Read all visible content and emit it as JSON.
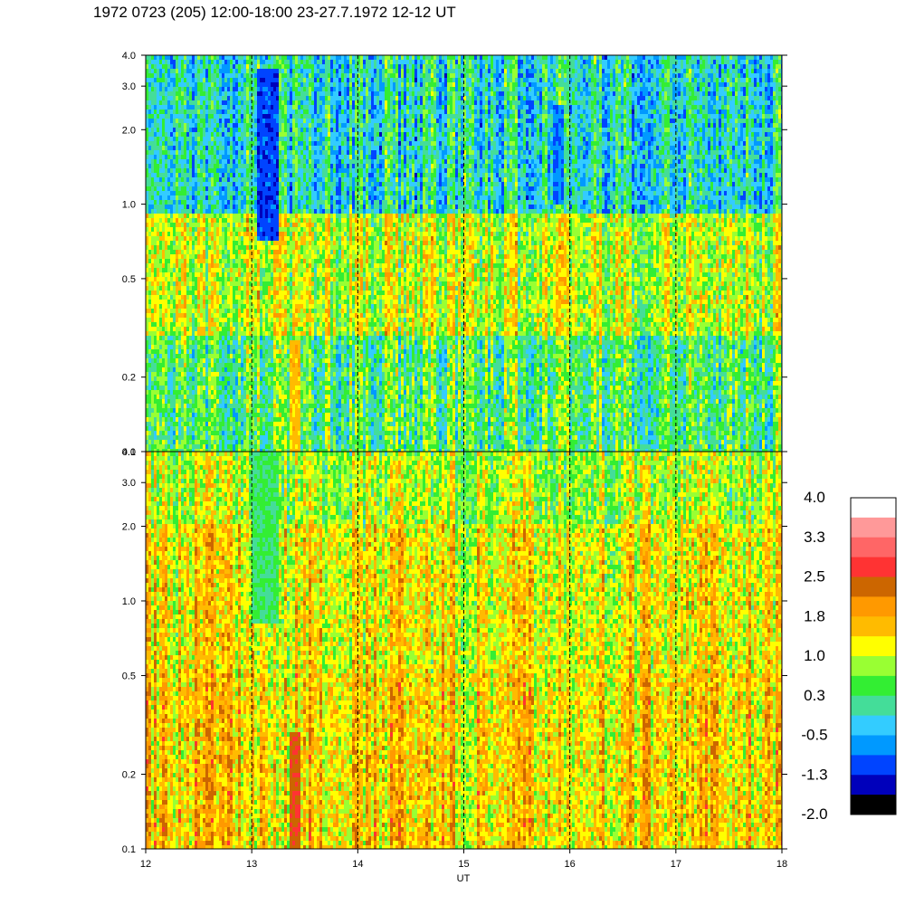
{
  "title": "1972 0723 (205) 12:00-18:00 23-27.7.1972  12-12 UT",
  "chart_data": [
    {
      "type": "heatmap",
      "panel": "top",
      "x": [
        12,
        13,
        14,
        15,
        16,
        17,
        18
      ],
      "xlim": [
        12,
        18
      ],
      "y_ticks": [
        "0.1",
        "0.2",
        "0.5",
        "1.0",
        "2.0",
        "3.0",
        "4.0"
      ],
      "y_tick_values": [
        0.1,
        0.2,
        0.5,
        1.0,
        2.0,
        3.0,
        4.0
      ],
      "ylim": [
        0.1,
        4.0
      ],
      "yscale": "log",
      "vertical_dashed_lines_at": [
        13,
        14,
        15,
        16,
        17
      ],
      "dominant_levels_by_frequency": [
        {
          "freq_range": [
            0.1,
            0.3
          ],
          "level": 0.3
        },
        {
          "freq_range": [
            0.3,
            0.9
          ],
          "level": 1.0
        },
        {
          "freq_range": [
            0.9,
            4.0
          ],
          "level": -0.2
        }
      ],
      "features": [
        {
          "x": [
            13.05,
            13.25
          ],
          "freq_range": [
            0.7,
            3.5
          ],
          "level": -1.3
        },
        {
          "x": [
            15.85,
            15.95
          ],
          "freq_range": [
            1.0,
            2.5
          ],
          "level": -1.0
        },
        {
          "x": [
            13.35,
            13.45
          ],
          "freq_range": [
            0.1,
            0.28
          ],
          "level": 1.6
        }
      ]
    },
    {
      "type": "heatmap",
      "panel": "bottom",
      "x": [
        12,
        13,
        14,
        15,
        16,
        17,
        18
      ],
      "xlim": [
        12,
        18
      ],
      "xlabel": "UT",
      "y_ticks": [
        "0.1",
        "0.2",
        "0.5",
        "1.0",
        "2.0",
        "3.0",
        "4.0"
      ],
      "y_tick_values": [
        0.1,
        0.2,
        0.5,
        1.0,
        2.0,
        3.0,
        4.0
      ],
      "ylim": [
        0.1,
        4.0
      ],
      "yscale": "log",
      "vertical_dashed_lines_at": [
        13,
        14,
        15,
        16,
        17
      ],
      "dominant_levels_by_frequency": [
        {
          "freq_range": [
            0.1,
            0.5
          ],
          "level": 1.5
        },
        {
          "freq_range": [
            0.5,
            2.0
          ],
          "level": 1.3
        },
        {
          "freq_range": [
            2.0,
            4.0
          ],
          "level": 0.9
        }
      ],
      "features": [
        {
          "x": [
            13.0,
            13.25
          ],
          "freq_range": [
            0.8,
            4.0
          ],
          "level": 0.2
        },
        {
          "x": [
            13.35,
            13.45
          ],
          "freq_range": [
            0.1,
            0.3
          ],
          "level": 2.6
        }
      ]
    }
  ],
  "colorbar": {
    "labels": [
      "4.0",
      "3.3",
      "2.5",
      "1.8",
      "1.0",
      "0.3",
      "-0.5",
      "-1.3",
      "-2.0"
    ],
    "colors": [
      "#ffffff",
      "#ff9999",
      "#ff6666",
      "#ff3333",
      "#cc6600",
      "#ff9900",
      "#ffbb00",
      "#ffff00",
      "#99ff33",
      "#33ee33",
      "#44dd99",
      "#33ccff",
      "#0099ff",
      "#0044ff",
      "#0000bb",
      "#000000"
    ]
  }
}
